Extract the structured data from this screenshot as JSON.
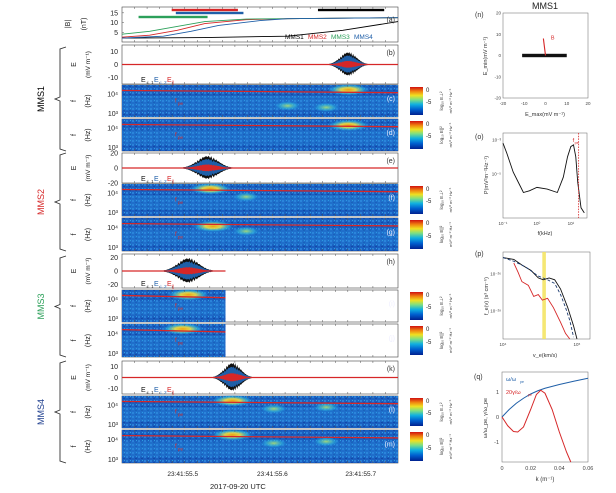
{
  "chart_data": [
    {
      "type": "line",
      "panel": "(a)",
      "ylabel": "|B|",
      "yunit": "(nT)",
      "yticks": [
        "5",
        "10",
        "15"
      ],
      "ylim": [
        0,
        18
      ],
      "legend": [
        "MMS1",
        "MMS2",
        "MMS3",
        "MMS4"
      ],
      "legend_colors": [
        "#000000",
        "#d62728",
        "#2ca05a",
        "#1f5fa8"
      ],
      "series": [
        {
          "name": "MMS1",
          "x": [
            0,
            0.3,
            0.6,
            0.8,
            1.0
          ],
          "values": [
            2,
            2.3,
            3,
            6,
            10.5
          ]
        },
        {
          "name": "MMS2",
          "x": [
            0,
            0.1,
            0.2,
            0.3,
            0.45,
            0.6,
            1.0
          ],
          "values": [
            2.5,
            3.5,
            6,
            9.5,
            11.5,
            12,
            12.5
          ]
        },
        {
          "name": "MMS3",
          "x": [
            0,
            0.1,
            0.2,
            0.3,
            0.45,
            0.6,
            1.0
          ],
          "values": [
            4,
            5.5,
            8,
            10.5,
            11.8,
            12,
            12.5
          ]
        },
        {
          "name": "MMS4",
          "x": [
            0,
            0.15,
            0.25,
            0.35,
            0.5,
            0.6,
            1.0
          ],
          "values": [
            2,
            3,
            5.5,
            8.5,
            11,
            12,
            12.5
          ]
        }
      ],
      "interval_bars": [
        {
          "name": "MMS2",
          "start": 0.18,
          "end": 0.42
        },
        {
          "name": "MMS4",
          "start": 0.195,
          "end": 0.44
        },
        {
          "name": "MMS3",
          "start": 0.06,
          "end": 0.31
        },
        {
          "name": "MMS1",
          "start": 0.71,
          "end": 0.95
        }
      ]
    },
    {
      "type": "line",
      "panel": "(b)",
      "spacecraft": "MMS1",
      "ylabel": "E",
      "yunit": "(mV m⁻¹)",
      "yticks": [
        "10",
        "0",
        "-10"
      ],
      "ylim": [
        -15,
        15
      ],
      "legend": [
        "E⊥1",
        "E⊥2",
        "E||"
      ],
      "burst_center": 0.82,
      "burst_width": 0.07,
      "burst_amplitude": 10
    },
    {
      "type": "heatmap",
      "panel": "(c)",
      "spacecraft": "MMS1",
      "ylabel": "f",
      "yunit": "(Hz)",
      "yticks": [
        "10⁴",
        "10³"
      ],
      "colorbar": {
        "ticks": [
          "0",
          "-5"
        ],
        "label": "log₁₀ E⊥²",
        "unit": "mV² m⁻² Hz⁻¹"
      },
      "annotation": "f_pe",
      "hot_spots": [
        [
          0.82,
          0.85
        ],
        [
          0.74,
          0.3
        ],
        [
          0.6,
          0.35
        ]
      ]
    },
    {
      "type": "heatmap",
      "panel": "(d)",
      "spacecraft": "MMS1",
      "ylabel": "f",
      "yunit": "(Hz)",
      "yticks": [
        "10⁴",
        "10³"
      ],
      "colorbar": {
        "ticks": [
          "0",
          "-5"
        ],
        "label": "log₁₀ E||²",
        "unit": "mV² m⁻² Hz⁻¹"
      },
      "annotation": "f_pe",
      "hot_spots": [
        [
          0.82,
          0.8
        ]
      ]
    },
    {
      "type": "line",
      "panel": "(e)",
      "spacecraft": "MMS2",
      "ylabel": "E",
      "yunit": "(mV m⁻¹)",
      "yticks": [
        "20",
        "0",
        "-20"
      ],
      "ylim": [
        -20,
        20
      ],
      "legend": [
        "E⊥1",
        "E⊥2",
        "E||"
      ],
      "burst_center": 0.31,
      "burst_width": 0.09,
      "burst_amplitude": 17
    },
    {
      "type": "heatmap",
      "panel": "(f)",
      "spacecraft": "MMS2",
      "ylabel": "f",
      "yunit": "(Hz)",
      "yticks": [
        "10⁴",
        "10³"
      ],
      "colorbar": {
        "ticks": [
          "0",
          "-5"
        ],
        "label": "log₁₀ E⊥²",
        "unit": "mV² m⁻² Hz⁻¹"
      },
      "annotation": "f_pe",
      "hot_spots": [
        [
          0.32,
          0.85
        ],
        [
          0.45,
          0.6
        ]
      ]
    },
    {
      "type": "heatmap",
      "panel": "(g)",
      "spacecraft": "MMS2",
      "ylabel": "f",
      "yunit": "(Hz)",
      "yticks": [
        "10⁴",
        "10³"
      ],
      "colorbar": {
        "ticks": [
          "0",
          "-5"
        ],
        "label": "log₁₀ E||²",
        "unit": "mV² m⁻² Hz⁻¹"
      },
      "annotation": "f_pe",
      "hot_spots": [
        [
          0.33,
          0.75
        ],
        [
          0.45,
          0.6
        ]
      ]
    },
    {
      "type": "line",
      "panel": "(h)",
      "spacecraft": "MMS3",
      "ylabel": "E",
      "yunit": "(mV m⁻¹)",
      "yticks": [
        "20",
        "0",
        "-20"
      ],
      "ylim": [
        -25,
        25
      ],
      "legend": [
        "E⊥1",
        "E⊥2",
        "E||"
      ],
      "burst_center": 0.24,
      "burst_width": 0.09,
      "burst_amplitude": 20,
      "data_end": 0.375
    },
    {
      "type": "heatmap",
      "panel": "(i)",
      "spacecraft": "MMS3",
      "ylabel": "f",
      "yunit": "(Hz)",
      "yticks": [
        "10⁴",
        "10³"
      ],
      "colorbar": {
        "ticks": [
          "0",
          "-5"
        ],
        "label": "log₁₀ E⊥²",
        "unit": "mV² m⁻² Hz⁻¹"
      },
      "annotation": "f_pe",
      "hot_spots": [
        [
          0.24,
          0.85
        ]
      ],
      "data_end": 0.375
    },
    {
      "type": "heatmap",
      "panel": "(j)",
      "spacecraft": "MMS3",
      "ylabel": "f",
      "yunit": "(Hz)",
      "yticks": [
        "10⁴",
        "10³"
      ],
      "colorbar": {
        "ticks": [
          "0",
          "-5"
        ],
        "label": "log₁₀ E||²",
        "unit": "mV² m⁻² Hz⁻¹"
      },
      "annotation": "f_pe",
      "hot_spots": [
        [
          0.22,
          0.85
        ]
      ],
      "data_end": 0.375
    },
    {
      "type": "line",
      "panel": "(k)",
      "spacecraft": "MMS4",
      "ylabel": "E",
      "yunit": "(mV m⁻¹)",
      "yticks": [
        "10",
        "0",
        "-10"
      ],
      "ylim": [
        -15,
        15
      ],
      "legend": [
        "E⊥1",
        "E⊥2",
        "E||"
      ],
      "burst_center": 0.4,
      "burst_width": 0.07,
      "burst_amplitude": 14
    },
    {
      "type": "heatmap",
      "panel": "(l)",
      "spacecraft": "MMS4",
      "ylabel": "f",
      "yunit": "(Hz)",
      "yticks": [
        "10⁴",
        "10³"
      ],
      "colorbar": {
        "ticks": [
          "0",
          "-5"
        ],
        "label": "log₁₀ E⊥²",
        "unit": "mV² m⁻² Hz⁻¹"
      },
      "annotation": "f_pe",
      "hot_spots": [
        [
          0.4,
          0.85
        ],
        [
          0.74,
          0.65
        ],
        [
          0.55,
          0.6
        ]
      ]
    },
    {
      "type": "heatmap",
      "panel": "(m)",
      "spacecraft": "MMS4",
      "ylabel": "f",
      "yunit": "(Hz)",
      "yticks": [
        "10⁴",
        "10³"
      ],
      "colorbar": {
        "ticks": [
          "0",
          "-5"
        ],
        "label": "log₁₀ E||²",
        "unit": "mV² m⁻² Hz⁻¹"
      },
      "annotation": "f_pe",
      "hot_spots": [
        [
          0.4,
          0.85
        ],
        [
          0.74,
          0.65
        ],
        [
          0.55,
          0.6
        ]
      ]
    },
    {
      "type": "scatter",
      "panel": "(n)",
      "title": "MMS1",
      "xlabel": "E_max(mV m⁻¹)",
      "ylabel": "E_min(mV m⁻¹)",
      "xlim": [
        -20,
        20
      ],
      "ylim": [
        -20,
        20
      ],
      "xticks": [
        "-20",
        "-10",
        "0",
        "10",
        "20"
      ],
      "yticks": [
        "20",
        "10",
        "0",
        "-10",
        "-20"
      ],
      "spread_x": [
        -11,
        10
      ],
      "spread_y": [
        -0.5,
        0.5
      ],
      "B_vector": {
        "label": "B",
        "from": [
          0,
          0
        ],
        "to": [
          -1,
          8
        ]
      }
    },
    {
      "type": "line",
      "panel": "(o)",
      "xlabel": "f(kHz)",
      "ylabel": "P(mV²m⁻²Hz⁻¹)",
      "xscale": "log",
      "yscale": "log",
      "xticks": [
        "10⁻¹",
        "10⁰",
        "10¹"
      ],
      "yticks": [
        "10⁻³",
        "10⁻⁵"
      ],
      "annotation": "f_pe",
      "fpe_kHz": 17,
      "x": [
        0.1,
        0.13,
        0.2,
        0.3,
        0.4,
        0.6,
        1,
        2,
        4,
        6,
        8,
        10,
        12,
        14,
        16,
        20,
        25
      ],
      "values": [
        -3.2,
        -3.8,
        -4.9,
        -5.6,
        -6.1,
        -6.0,
        -5.8,
        -5.9,
        -6.1,
        -5.2,
        -4.0,
        -3.4,
        -3.3,
        -4.0,
        -5.5,
        -7.0,
        -7.3
      ]
    },
    {
      "type": "line",
      "panel": "(p)",
      "xlabel": "v_e(km/s)",
      "ylabel": "f_e(v) (s³ cm⁻⁶)",
      "xscale": "log",
      "yscale": "log",
      "xticks": [
        "10⁴",
        "10⁵"
      ],
      "yticks": [
        "10⁻²⁶",
        "10⁻²⁸"
      ],
      "highlight_band": [
        34000,
        38000
      ],
      "series": [
        {
          "name": "black",
          "x": [
            10000,
            14000,
            18000,
            24000,
            30000,
            35000,
            42000,
            50000,
            60000,
            75000,
            90000,
            100000
          ],
          "values": [
            -25.1,
            -25.2,
            -25.5,
            -25.8,
            -26.2,
            -26.3,
            -26.2,
            -26.3,
            -26.8,
            -27.8,
            -28.8,
            -29.6
          ]
        },
        {
          "name": "red",
          "x": [
            14000,
            16000,
            18000,
            22000,
            26000,
            30000,
            34000,
            40000,
            48000,
            60000,
            70000,
            80000
          ],
          "values": [
            -25.4,
            -25.9,
            -26.4,
            -26.6,
            -27.2,
            -27.1,
            -27.4,
            -27.3,
            -27.8,
            -28.6,
            -29.2,
            -29.8
          ]
        },
        {
          "name": "dashed",
          "x": [
            10000,
            14000,
            20000,
            30000,
            40000,
            50000,
            60000,
            70000,
            80000,
            90000
          ],
          "values": [
            -25.1,
            -25.3,
            -25.6,
            -26.1,
            -26.3,
            -26.5,
            -27.1,
            -27.8,
            -28.5,
            -29.4
          ]
        }
      ]
    },
    {
      "type": "line",
      "panel": "(q)",
      "xlabel": "k (m⁻¹)",
      "ylabel": "ω/ω_pe, γ/ω_pe",
      "xlim": [
        0,
        0.06
      ],
      "ylim": [
        -1.8,
        1.8
      ],
      "xticks": [
        "0",
        "0.02",
        "0.04",
        "0.06"
      ],
      "yticks": [
        "1",
        "0",
        "-1"
      ],
      "legend": [
        "ω/ω_pe",
        "20γ/ω_pe"
      ],
      "series": [
        {
          "name": "ω/ω_pe",
          "x": [
            0,
            0.005,
            0.01,
            0.015,
            0.02,
            0.025,
            0.03,
            0.04,
            0.05,
            0.06
          ],
          "values": [
            0,
            0.3,
            0.55,
            0.75,
            0.92,
            1.05,
            1.15,
            1.3,
            1.43,
            1.55
          ]
        },
        {
          "name": "20γ/ω_pe",
          "x": [
            0,
            0.004,
            0.008,
            0.011,
            0.015,
            0.02,
            0.024,
            0.027,
            0.03,
            0.035,
            0.04,
            0.045,
            0.048
          ],
          "values": [
            0,
            -0.35,
            -0.58,
            -0.6,
            -0.4,
            0.3,
            0.9,
            1.07,
            0.95,
            0.3,
            -0.6,
            -1.4,
            -1.8
          ]
        }
      ]
    }
  ],
  "labels": {
    "spacecraft": [
      "MMS1",
      "MMS2",
      "MMS3",
      "MMS4"
    ],
    "spacecraft_colors": [
      "#000000",
      "#d62728",
      "#2ca05a",
      "#1f3f8f"
    ],
    "time_ticks": [
      "23:41:55.5",
      "23:41:55.6",
      "23:41:55.7"
    ],
    "time_axis_label": "2017-09-20 UTC",
    "panel_letters": [
      "(a)",
      "(b)",
      "(c)",
      "(d)",
      "(e)",
      "(f)",
      "(g)",
      "(h)",
      "(i)",
      "(j)",
      "(k)",
      "(l)",
      "(m)",
      "(n)",
      "(o)",
      "(p)",
      "(q)"
    ],
    "fpe_label": "f",
    "fpe_sub": "pe",
    "efield_legend": {
      "e1": "E",
      "e1_sub": "⊥ 1",
      "e2": "E",
      "e2_sub": "⊥ 2",
      "e3": "E",
      "e3_sub": "||"
    },
    "n_title": "MMS1",
    "n_b_label": "B",
    "o_fpe": "f",
    "o_fpe_sub": "pe",
    "q_legend1": "ω/ω",
    "q_legend1_sub": "pe",
    "q_legend2": "20γ/ω",
    "q_legend2_sub": "pe"
  },
  "colors": {
    "black": "#000000",
    "red": "#d62728",
    "green": "#2ca05a",
    "blue": "#1f5fa8",
    "yellow": "#f3e35a"
  }
}
